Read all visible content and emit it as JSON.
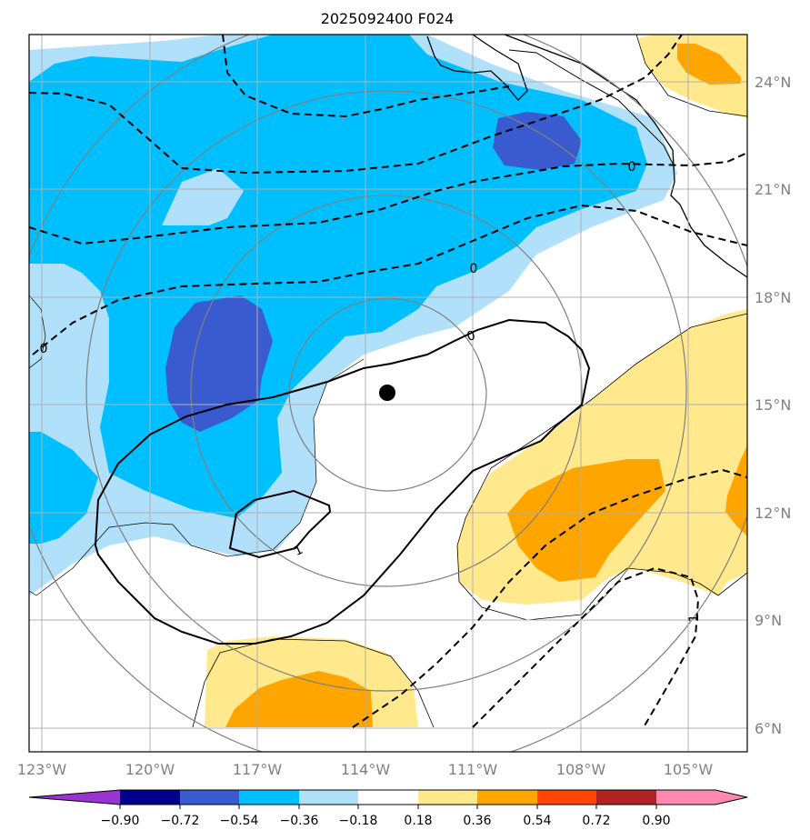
{
  "title": "2025092400 F024",
  "colors": {
    "neg_090_less": "#9b32d2",
    "neg_090_072": "#00008b",
    "neg_072_054": "#3a5bcf",
    "neg_054_036": "#00bfff",
    "neg_036_018": "#b0e0fa",
    "neutral": "#ffffff",
    "pos_018_036": "#ffe98c",
    "pos_036_054": "#ffa500",
    "pos_054_072": "#ff4500",
    "pos_072_090": "#b22222",
    "pos_090_more": "#ff88b0"
  },
  "lon_ticks": [
    "123°W",
    "120°W",
    "117°W",
    "114°W",
    "111°W",
    "108°W",
    "105°W"
  ],
  "lat_ticks": [
    "24°N",
    "21°N",
    "18°N",
    "15°N",
    "12°N",
    "9°N",
    "6°N"
  ],
  "colorbar_ticks": [
    "−0.90",
    "−0.72",
    "−0.54",
    "−0.36",
    "−0.18",
    "0.18",
    "0.36",
    "0.54",
    "0.72",
    "0.90"
  ],
  "contour_labels": {
    "zero": "0",
    "one": "1"
  },
  "storm_center": {
    "lon": -113.3,
    "lat": 15.3
  }
}
